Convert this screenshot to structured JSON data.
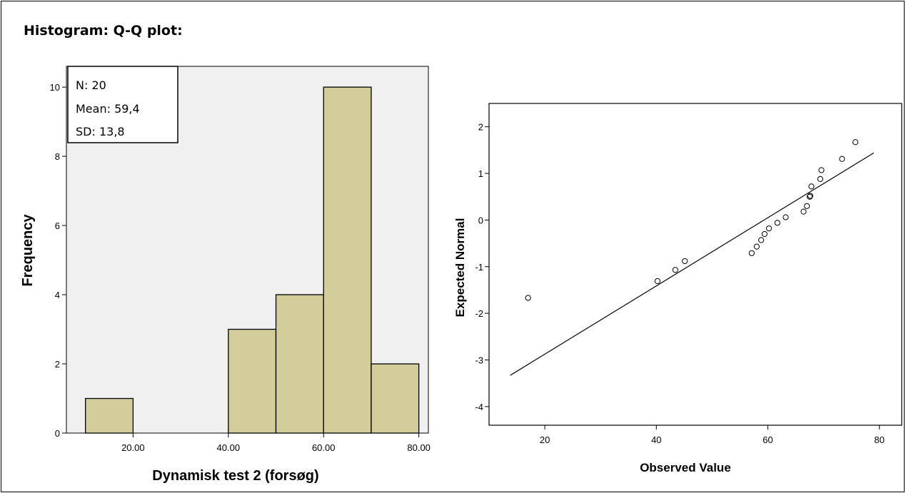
{
  "page": {
    "title": "Histogram: Q-Q plot:"
  },
  "chart_data": [
    {
      "type": "bar",
      "subtype": "histogram",
      "xlabel": "Dynamisk test 2 (forsøg)",
      "ylabel": "Frequency",
      "bins": [
        {
          "start": 10,
          "end": 20,
          "count": 1
        },
        {
          "start": 20,
          "end": 30,
          "count": 0
        },
        {
          "start": 30,
          "end": 40,
          "count": 0
        },
        {
          "start": 40,
          "end": 50,
          "count": 3
        },
        {
          "start": 50,
          "end": 60,
          "count": 4
        },
        {
          "start": 60,
          "end": 70,
          "count": 10
        },
        {
          "start": 70,
          "end": 80,
          "count": 2
        }
      ],
      "xlim": [
        6,
        82
      ],
      "ylim": [
        0,
        10.6
      ],
      "xticks": [
        20,
        40,
        60,
        80
      ],
      "xtick_labels": [
        "20.00",
        "40.00",
        "60.00",
        "80.00"
      ],
      "yticks": [
        0,
        2,
        4,
        6,
        8,
        10
      ],
      "ytick_labels": [
        "0",
        "2",
        "4",
        "6",
        "8",
        "10"
      ],
      "stats_box": {
        "n": "N: 20",
        "mean": "Mean: 59,4",
        "sd": "SD: 13,8"
      },
      "bar_color": "#d3cc9b",
      "plot_background": "#f0f0f0"
    },
    {
      "type": "scatter",
      "subtype": "qq",
      "xlabel": "Observed Value",
      "ylabel": "Expected Normal",
      "xlim": [
        10,
        84
      ],
      "ylim": [
        -4.4,
        2.5
      ],
      "xticks": [
        20,
        40,
        60,
        80
      ],
      "xtick_labels": [
        "20",
        "40",
        "60",
        "80"
      ],
      "yticks": [
        -4,
        -3,
        -2,
        -1,
        0,
        1,
        2
      ],
      "ytick_labels": [
        "-4",
        "-3",
        "-2",
        "-1",
        "0",
        "1",
        "2"
      ],
      "points": [
        {
          "x": 17,
          "y": -1.67
        },
        {
          "x": 40.2,
          "y": -1.31
        },
        {
          "x": 43.4,
          "y": -1.07
        },
        {
          "x": 45.1,
          "y": -0.88
        },
        {
          "x": 57.1,
          "y": -0.71
        },
        {
          "x": 58.0,
          "y": -0.57
        },
        {
          "x": 58.8,
          "y": -0.43
        },
        {
          "x": 59.4,
          "y": -0.3
        },
        {
          "x": 60.2,
          "y": -0.18
        },
        {
          "x": 61.7,
          "y": -0.06
        },
        {
          "x": 63.2,
          "y": 0.06
        },
        {
          "x": 66.4,
          "y": 0.18
        },
        {
          "x": 67.0,
          "y": 0.3
        },
        {
          "x": 67.5,
          "y": 0.5
        },
        {
          "x": 67.6,
          "y": 0.52
        },
        {
          "x": 67.8,
          "y": 0.72
        },
        {
          "x": 69.4,
          "y": 0.88
        },
        {
          "x": 69.6,
          "y": 1.07
        },
        {
          "x": 73.3,
          "y": 1.31
        },
        {
          "x": 75.7,
          "y": 1.67
        }
      ],
      "reference_line": [
        {
          "x": 13.8,
          "y": -3.33
        },
        {
          "x": 79.0,
          "y": 1.44
        }
      ],
      "plot_background": "#ffffff"
    }
  ]
}
